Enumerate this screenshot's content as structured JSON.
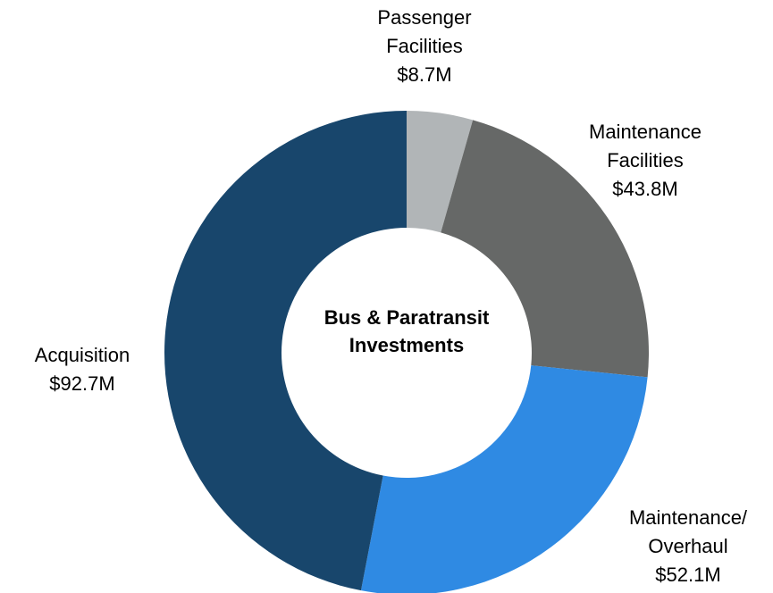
{
  "chart_data": {
    "type": "donut",
    "center_label": "Bus & Paratransit Investments",
    "categories": [
      "Passenger Facilities",
      "Maintenance Facilities",
      "Maintenance/ Overhaul",
      "Acquisition"
    ],
    "values": [
      8.7,
      43.8,
      52.1,
      92.7
    ],
    "value_labels": [
      "$8.7M",
      "$43.8M",
      "$52.1M",
      "$92.7M"
    ],
    "colors": [
      "#b1b5b7",
      "#666867",
      "#2f8ae3",
      "#18466c"
    ]
  }
}
